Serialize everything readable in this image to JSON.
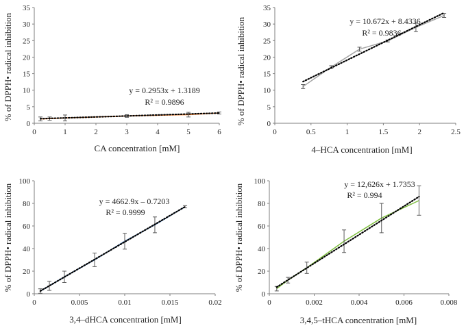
{
  "chart_data": [
    {
      "type": "line",
      "xlabel": "CA concentration [mM]",
      "ylabel": "% of DPPH• radical inhibition",
      "xlim": [
        0,
        6
      ],
      "ylim": [
        0,
        35
      ],
      "xticks": [
        "0",
        "1",
        "2",
        "3",
        "4",
        "5",
        "6"
      ],
      "yticks": [
        "0",
        "5",
        "10",
        "15",
        "20",
        "25",
        "30",
        "35"
      ],
      "x": [
        0.2,
        0.5,
        1,
        3,
        5,
        6
      ],
      "series": [
        {
          "values": [
            1.3,
            1.4,
            1.6,
            2.2,
            2.6,
            3.1
          ],
          "error": [
            0.6,
            0.5,
            0.9,
            0.4,
            0.7,
            0.3
          ],
          "color": "#ff8c3a"
        }
      ],
      "trendline": {
        "x": [
          0.2,
          6
        ],
        "slope": 0.2953,
        "intercept": 1.3189,
        "color": "#000000",
        "style": "dotted"
      },
      "annotation": [
        "y = 0.2953x + 1.3189",
        "R² = 0.9896"
      ]
    },
    {
      "type": "line",
      "xlabel": "4–HCA concentration [mM]",
      "ylabel": "% of DPPH• radical inhibition",
      "xlim": [
        0,
        2.5
      ],
      "ylim": [
        0,
        35
      ],
      "xticks": [
        "0",
        "0.5",
        "1",
        "1.5",
        "2",
        "2.5"
      ],
      "yticks": [
        "0",
        "5",
        "10",
        "15",
        "20",
        "25",
        "30",
        "35"
      ],
      "x": [
        0.39,
        0.78,
        1.17,
        1.56,
        1.95,
        2.34
      ],
      "series": [
        {
          "values": [
            11.1,
            17.0,
            22.4,
            24.9,
            29.0,
            32.6
          ],
          "error": [
            0.6,
            0.4,
            0.6,
            0.3,
            1.3,
            0.6
          ],
          "color": "#a6a6a6"
        }
      ],
      "trendline": {
        "x": [
          0.39,
          2.34
        ],
        "slope": 10.672,
        "intercept": 8.4336,
        "color": "#000000",
        "style": "dotted"
      },
      "annotation": [
        "y = 10.672x + 8.4336",
        "R² = 0.9836"
      ]
    },
    {
      "type": "line",
      "xlabel": "3,4–dHCA concentration [mM]",
      "ylabel": "% of DPPH• radical inhibition",
      "xlim": [
        0,
        0.02
      ],
      "ylim": [
        0,
        100
      ],
      "xticks": [
        "0",
        "0.005",
        "0.01",
        "0.015",
        "0.02"
      ],
      "yticks": [
        "0",
        "20",
        "40",
        "60",
        "80",
        "100"
      ],
      "x": [
        0.00067,
        0.00167,
        0.00333,
        0.00667,
        0.01,
        0.01333,
        0.01667
      ],
      "series": [
        {
          "values": [
            2.4,
            7.0,
            15.0,
            30.0,
            46.5,
            61.0,
            77.0
          ],
          "error": [
            2.0,
            4.0,
            5.0,
            6.0,
            7.0,
            7.0,
            1.0
          ],
          "color": "#4a7ebb"
        }
      ],
      "trendline": {
        "x": [
          0.00067,
          0.01667
        ],
        "slope": 4662.9,
        "intercept": -0.7203,
        "color": "#000000",
        "style": "dotted"
      },
      "annotation": [
        "y = 4662.9x – 0.7203",
        "R² = 0.9999"
      ]
    },
    {
      "type": "line",
      "xlabel": "3,4,5–tHCA concentration [mM]",
      "ylabel": "% of DPPH• radical inhibition",
      "xlim": [
        0,
        0.008
      ],
      "ylim": [
        0,
        100
      ],
      "xticks": [
        "0",
        "0.002",
        "0.004",
        "0.006",
        "0.008"
      ],
      "yticks": [
        "0",
        "20",
        "40",
        "60",
        "80",
        "100"
      ],
      "x": [
        0.00033,
        0.00083,
        0.00167,
        0.00333,
        0.005,
        0.00667
      ],
      "series": [
        {
          "values": [
            4.5,
            12.0,
            23.0,
            46.5,
            67.0,
            82.5
          ],
          "error": [
            2.0,
            2.5,
            5.0,
            10.0,
            13.0,
            13.0
          ],
          "color": "#7fbf3f"
        }
      ],
      "trendline": {
        "x": [
          0.00033,
          0.00667
        ],
        "slope": 12626,
        "intercept": 1.7353,
        "color": "#000000",
        "style": "dotted"
      },
      "annotation": [
        "y = 12,626x + 1.7353",
        "R² = 0.994"
      ]
    }
  ]
}
